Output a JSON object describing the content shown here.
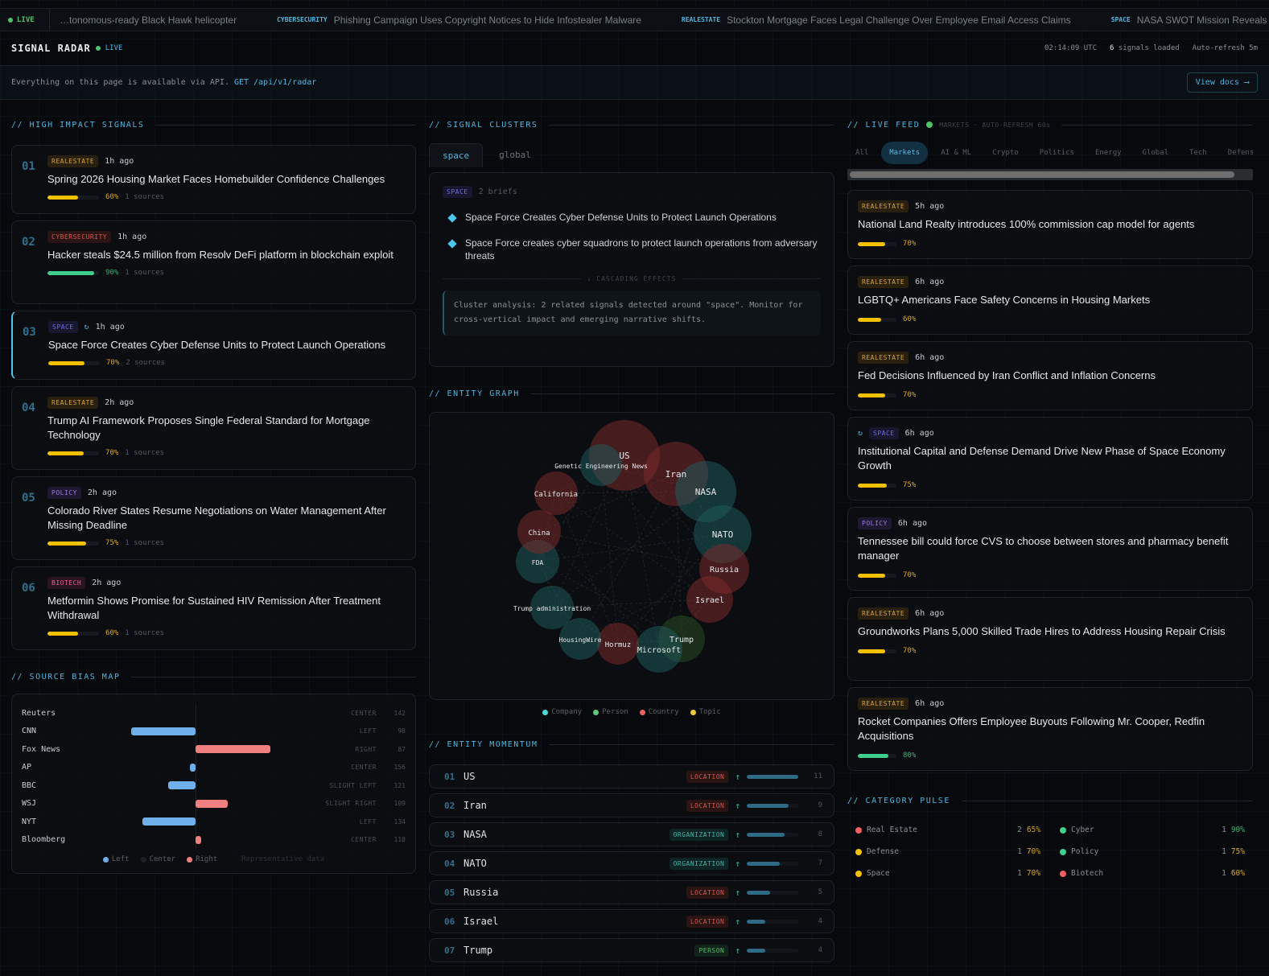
{
  "ticker": {
    "live": "LIVE",
    "items": [
      {
        "tag": "",
        "text": "…tonomous-ready Black Hawk helicopter"
      },
      {
        "tag": "CYBERSECURITY",
        "text": "Phishing Campaign Uses Copyright Notices to Hide Infostealer Malware"
      },
      {
        "tag": "REALESTATE",
        "text": "Stockton Mortgage Faces Legal Challenge Over Employee Email Access Claims"
      },
      {
        "tag": "SPACE",
        "text": "NASA SWOT Mission Reveals N…"
      }
    ]
  },
  "header": {
    "title": "SIGNAL RADAR",
    "live": "LIVE",
    "time": "02:14:09 UTC",
    "signals_count": "6",
    "signals_label": "signals loaded",
    "refresh": "Auto-refresh 5m"
  },
  "api": {
    "text": "Everything on this page is available via API.",
    "endpoint": "GET /api/v1/radar",
    "docs": "View docs ⟶"
  },
  "colors": {
    "accent": "#4fb6e0",
    "yellow": "#f5c000",
    "green": "#3fcf8e",
    "red": "#f08080",
    "blue": "#6fb0ea"
  },
  "high_impact": {
    "title": "// HIGH IMPACT SIGNALS",
    "items": [
      {
        "num": "01",
        "tag": "REALESTATE",
        "tagc": "t-re",
        "time": "1h ago",
        "title": "Spring 2026 Housing Market Faces Homebuilder Confidence Challenges",
        "pct": 60,
        "pct_label": "60%",
        "sources": "1 sources",
        "linked": false
      },
      {
        "num": "02",
        "tag": "CYBERSECURITY",
        "tagc": "t-cy",
        "time": "1h ago",
        "title": "Hacker steals $24.5 million from Resolv DeFi platform in blockchain exploit",
        "pct": 90,
        "pct_label": "90%",
        "sources": "1 sources",
        "linked": false
      },
      {
        "num": "03",
        "tag": "SPACE",
        "tagc": "t-sp",
        "time": "1h ago",
        "title": "Space Force Creates Cyber Defense Units to Protect Launch Operations",
        "pct": 70,
        "pct_label": "70%",
        "sources": "2 sources",
        "linked": true
      },
      {
        "num": "04",
        "tag": "REALESTATE",
        "tagc": "t-re",
        "time": "2h ago",
        "title": "Trump AI Framework Proposes Single Federal Standard for Mortgage Technology",
        "pct": 70,
        "pct_label": "70%",
        "sources": "1 sources",
        "linked": false
      },
      {
        "num": "05",
        "tag": "POLICY",
        "tagc": "t-po",
        "time": "2h ago",
        "title": "Colorado River States Resume Negotiations on Water Management After Missing Deadline",
        "pct": 75,
        "pct_label": "75%",
        "sources": "1 sources",
        "linked": false
      },
      {
        "num": "06",
        "tag": "BIOTECH",
        "tagc": "t-bi",
        "time": "2h ago",
        "title": "Metformin Shows Promise for Sustained HIV Remission After Treatment Withdrawal",
        "pct": 60,
        "pct_label": "60%",
        "sources": "1 sources",
        "linked": false
      }
    ]
  },
  "bias": {
    "title": "// SOURCE BIAS MAP",
    "rows": [
      {
        "name": "Reuters",
        "bias": 0,
        "label": "CENTER",
        "count": "142"
      },
      {
        "name": "CNN",
        "bias": -83,
        "label": "LEFT",
        "count": "98"
      },
      {
        "name": "Fox News",
        "bias": 97,
        "label": "RIGHT",
        "count": "87"
      },
      {
        "name": "AP",
        "bias": -7,
        "label": "CENTER",
        "count": "156"
      },
      {
        "name": "BBC",
        "bias": -35,
        "label": "SLIGHT LEFT",
        "count": "121"
      },
      {
        "name": "WSJ",
        "bias": 42,
        "label": "SLIGHT RIGHT",
        "count": "109"
      },
      {
        "name": "NYT",
        "bias": -69,
        "label": "LEFT",
        "count": "134"
      },
      {
        "name": "Bloomberg",
        "bias": 7,
        "label": "CENTER",
        "count": "118"
      }
    ],
    "range": [
      -100,
      100
    ],
    "legend": {
      "left": "Left",
      "center": "Center",
      "right": "Right",
      "note": "Representative data"
    }
  },
  "clusters": {
    "title": "// SIGNAL CLUSTERS",
    "tabs": [
      "space",
      "global"
    ],
    "tag": "SPACE",
    "count": "2 briefs",
    "briefs": [
      "Space Force Creates Cyber Defense Units to Protect Launch Operations",
      "Space Force creates cyber squadrons to protect launch operations from adversary threats"
    ],
    "cascading": "↓ CASCADING EFFECTS",
    "analysis": "Cluster analysis: 2 related signals detected around \"space\". Monitor for cross-vertical impact and emerging narrative shifts."
  },
  "graph": {
    "title": "// ENTITY GRAPH",
    "nodes": [
      {
        "label": "US",
        "type": "country"
      },
      {
        "label": "Genetic Engineering News",
        "type": "company"
      },
      {
        "label": "Iran",
        "type": "country"
      },
      {
        "label": "NASA",
        "type": "company"
      },
      {
        "label": "NATO",
        "type": "company"
      },
      {
        "label": "Russia",
        "type": "country"
      },
      {
        "label": "Israel",
        "type": "country"
      },
      {
        "label": "Trump",
        "type": "person"
      },
      {
        "label": "Microsoft",
        "type": "company"
      },
      {
        "label": "Hormuz",
        "type": "country"
      },
      {
        "label": "HousingWire",
        "type": "company"
      },
      {
        "label": "Trump administration",
        "type": "company"
      },
      {
        "label": "FDA",
        "type": "company"
      },
      {
        "label": "China",
        "type": "country"
      },
      {
        "label": "California",
        "type": "country"
      }
    ],
    "legend": [
      {
        "label": "Company",
        "color": "#4fd8d8"
      },
      {
        "label": "Person",
        "color": "#5cc87a"
      },
      {
        "label": "Country",
        "color": "#f06060"
      },
      {
        "label": "Topic",
        "color": "#f0c840"
      }
    ]
  },
  "momentum": {
    "title": "// ENTITY MOMENTUM",
    "max": 11,
    "rows": [
      {
        "num": "01",
        "name": "US",
        "type": "LOCATION",
        "tc": "e-loc",
        "count": 11
      },
      {
        "num": "02",
        "name": "Iran",
        "type": "LOCATION",
        "tc": "e-loc",
        "count": 9
      },
      {
        "num": "03",
        "name": "NASA",
        "type": "ORGANIZATION",
        "tc": "e-org",
        "count": 8
      },
      {
        "num": "04",
        "name": "NATO",
        "type": "ORGANIZATION",
        "tc": "e-org",
        "count": 7
      },
      {
        "num": "05",
        "name": "Russia",
        "type": "LOCATION",
        "tc": "e-loc",
        "count": 5
      },
      {
        "num": "06",
        "name": "Israel",
        "type": "LOCATION",
        "tc": "e-loc",
        "count": 4
      },
      {
        "num": "07",
        "name": "Trump",
        "type": "PERSON",
        "tc": "e-per",
        "count": 4
      }
    ]
  },
  "feed": {
    "title": "// LIVE FEED",
    "sub": "MARKETS · AUTO-REFRESH 60s",
    "tabs": [
      "All",
      "Markets",
      "AI & ML",
      "Crypto",
      "Politics",
      "Energy",
      "Global",
      "Tech",
      "Defens"
    ],
    "active_tab": "Markets",
    "items": [
      {
        "tag": "REALESTATE",
        "tagc": "t-re",
        "time": "5h ago",
        "title": "National Land Realty introduces 100% commission cap model for agents",
        "pct": 70,
        "pct_label": "70%",
        "linked": false
      },
      {
        "tag": "REALESTATE",
        "tagc": "t-re",
        "time": "6h ago",
        "title": "LGBTQ+ Americans Face Safety Concerns in Housing Markets",
        "pct": 60,
        "pct_label": "60%",
        "linked": false
      },
      {
        "tag": "REALESTATE",
        "tagc": "t-re",
        "time": "6h ago",
        "title": "Fed Decisions Influenced by Iran Conflict and Inflation Concerns",
        "pct": 70,
        "pct_label": "70%",
        "linked": false
      },
      {
        "tag": "SPACE",
        "tagc": "t-sp",
        "time": "6h ago",
        "title": "Institutional Capital and Defense Demand Drive New Phase of Space Economy Growth",
        "pct": 75,
        "pct_label": "75%",
        "linked": true
      },
      {
        "tag": "POLICY",
        "tagc": "t-po",
        "time": "6h ago",
        "title": "Tennessee bill could force CVS to choose between stores and pharmacy benefit manager",
        "pct": 70,
        "pct_label": "70%",
        "linked": false
      },
      {
        "tag": "REALESTATE",
        "tagc": "t-re",
        "time": "6h ago",
        "title": "Groundworks Plans 5,000 Skilled Trade Hires to Address Housing Repair Crisis",
        "pct": 70,
        "pct_label": "70%",
        "linked": false
      },
      {
        "tag": "REALESTATE",
        "tagc": "t-re",
        "time": "6h ago",
        "title": "Rocket Companies Offers Employee Buyouts Following Mr. Cooper, Redfin Acquisitions",
        "pct": 80,
        "pct_label": "80%",
        "linked": false
      }
    ]
  },
  "pulse": {
    "title": "// CATEGORY PULSE",
    "items": [
      {
        "name": "Real Estate",
        "color": "#f06060",
        "count": "2",
        "pct": "65%",
        "pc": "#d9a520"
      },
      {
        "name": "Cyber",
        "color": "#3fcf8e",
        "count": "1",
        "pct": "90%",
        "pc": "#3fb07a"
      },
      {
        "name": "Defense",
        "color": "#f5c000",
        "count": "1",
        "pct": "70%",
        "pc": "#d9a520"
      },
      {
        "name": "Policy",
        "color": "#3fcf8e",
        "count": "1",
        "pct": "75%",
        "pc": "#d9a520"
      },
      {
        "name": "Space",
        "color": "#f5c000",
        "count": "1",
        "pct": "70%",
        "pc": "#d9a520"
      },
      {
        "name": "Biotech",
        "color": "#f06060",
        "count": "1",
        "pct": "60%",
        "pc": "#d9a520"
      }
    ]
  }
}
